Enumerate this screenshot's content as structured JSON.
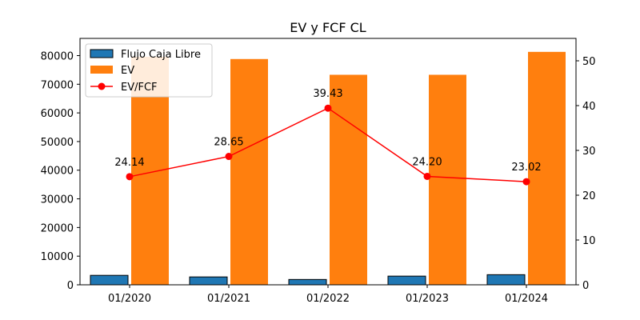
{
  "chart_data": {
    "type": "bar",
    "title": "EV y FCF CL",
    "xlabel": "",
    "ylabel": "",
    "categories": [
      "01/2020",
      "01/2021",
      "01/2022",
      "01/2023",
      "01/2024"
    ],
    "series": [
      {
        "name": "Flujo Caja Libre",
        "kind": "bar",
        "axis": "left",
        "color": "#1f77b4",
        "values": [
          3300,
          2750,
          1860,
          3030,
          3530
        ]
      },
      {
        "name": "EV",
        "kind": "bar",
        "axis": "left",
        "color": "#ff7f0e",
        "values": [
          79600,
          78800,
          73300,
          73300,
          81300
        ]
      },
      {
        "name": "EV/FCF",
        "kind": "line",
        "axis": "right",
        "color": "#ff0000",
        "values": [
          24.14,
          28.65,
          39.43,
          24.2,
          23.02
        ],
        "labels": [
          "24.14",
          "28.65",
          "39.43",
          "24.20",
          "23.02"
        ]
      }
    ],
    "y_left": {
      "ylim": [
        0,
        86000
      ],
      "ticks": [
        0,
        10000,
        20000,
        30000,
        40000,
        50000,
        60000,
        70000,
        80000
      ]
    },
    "y_right": {
      "ylim": [
        0,
        55
      ],
      "ticks": [
        0,
        10,
        20,
        30,
        40,
        50
      ]
    },
    "legend_position": "top-left",
    "grid": false
  }
}
